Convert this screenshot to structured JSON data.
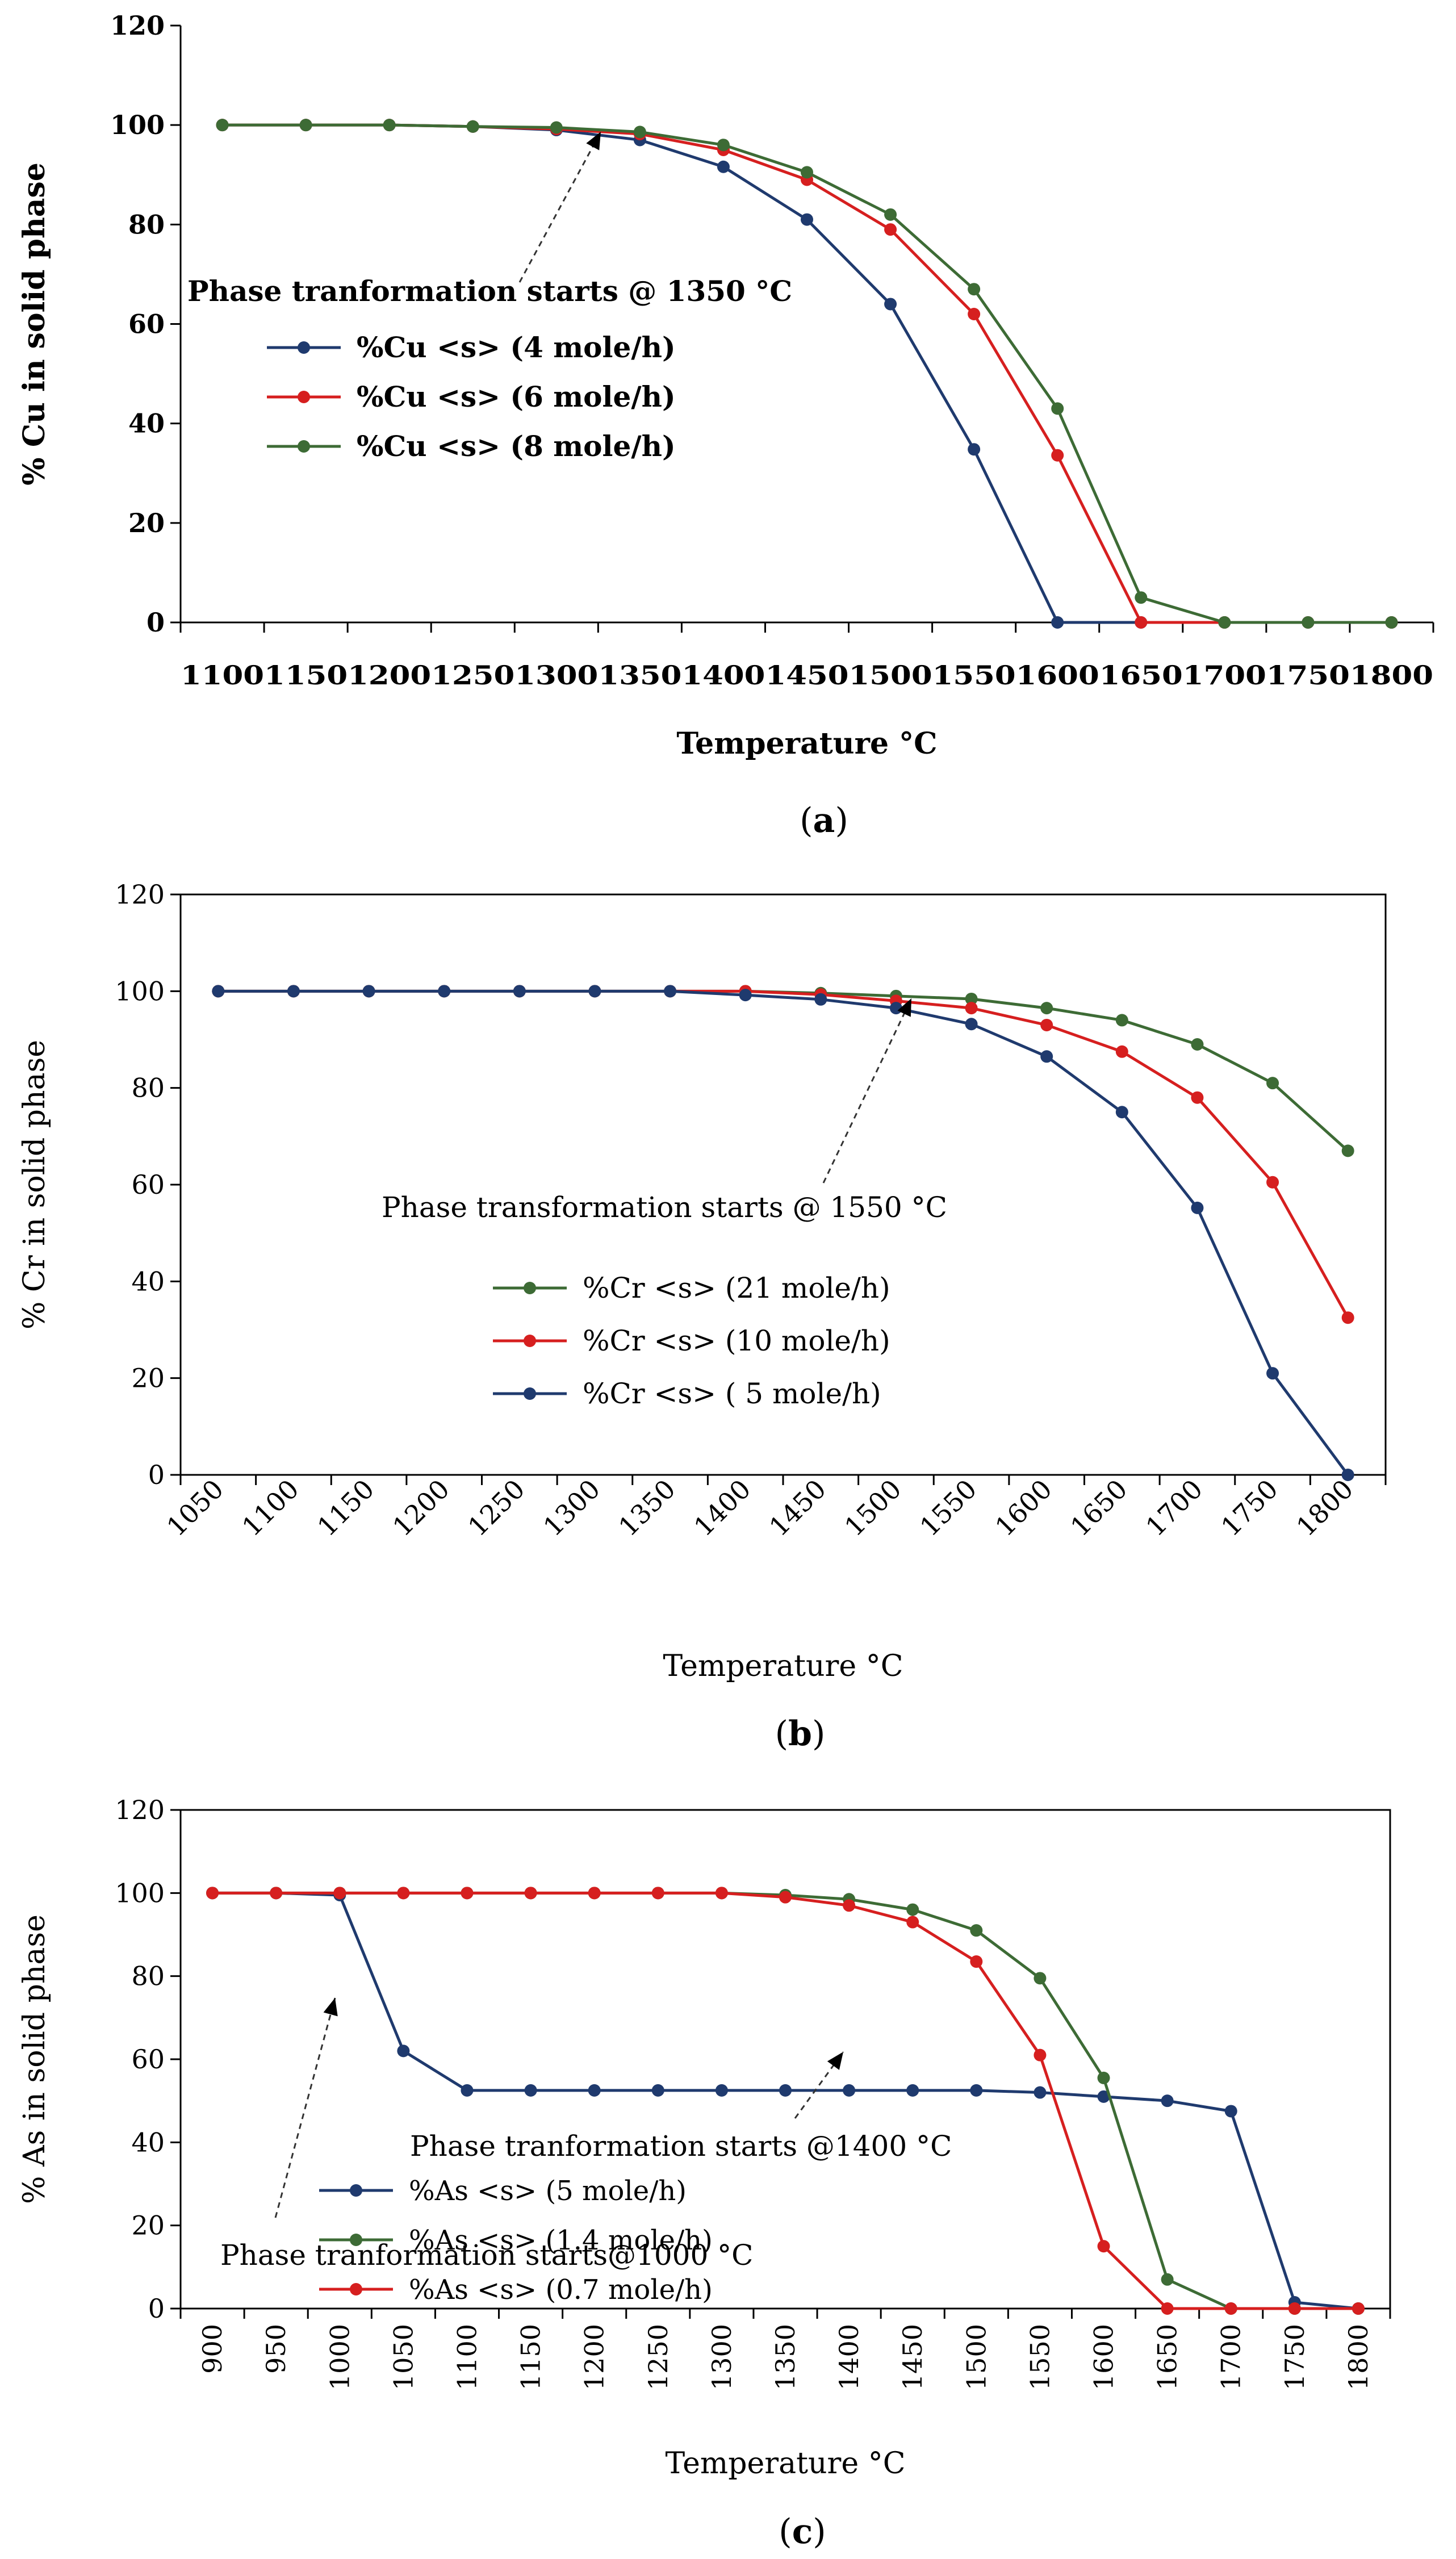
{
  "chart_data": [
    {
      "type": "line",
      "panel_label": "(a)",
      "panel_label_parts": [
        "(",
        "a",
        ")"
      ],
      "title": "",
      "xlabel": "Temperature °C",
      "ylabel": "% Cu in solid phase",
      "categories": [
        "1100",
        "1150",
        "1200",
        "1250",
        "1300",
        "1350",
        "1400",
        "1450",
        "1500",
        "1550",
        "1600",
        "1650",
        "1700",
        "1750",
        "1800"
      ],
      "ylim": [
        0,
        120
      ],
      "yticks": [
        "0",
        "20",
        "40",
        "60",
        "80",
        "100",
        "120"
      ],
      "grid": false,
      "series": [
        {
          "name": "%Cu <s> (4 mole/h)",
          "color": "#1f3a6e",
          "values": [
            100,
            100,
            100,
            99.7,
            99,
            97,
            91.6,
            81,
            64,
            34.8,
            0,
            0,
            0,
            0,
            0
          ]
        },
        {
          "name": "%Cu <s> (6 mole/h)",
          "color": "#d61f1f",
          "values": [
            100,
            100,
            100,
            99.7,
            99.2,
            98.2,
            95,
            89,
            79,
            62,
            33.6,
            0,
            0,
            0,
            0
          ]
        },
        {
          "name": "%Cu <s> (8 mole/h)",
          "color": "#3d6b35",
          "values": [
            100,
            100,
            100,
            99.7,
            99.5,
            98.6,
            96,
            90.5,
            82,
            67,
            43,
            5,
            0,
            0,
            0
          ]
        }
      ],
      "annotations": [
        {
          "text": "Phase tranformation starts @ 1350 °C",
          "target_category": "1300",
          "target_value": 99
        }
      ]
    },
    {
      "type": "line",
      "panel_label": "(b)",
      "panel_label_parts": [
        "(",
        "b",
        ")"
      ],
      "title": "",
      "xlabel": "Temperature °C",
      "ylabel": "% Cr in solid phase",
      "categories": [
        "1050",
        "1100",
        "1150",
        "1200",
        "1250",
        "1300",
        "1350",
        "1400",
        "1450",
        "1500",
        "1550",
        "1600",
        "1650",
        "1700",
        "1750",
        "1800"
      ],
      "ylim": [
        0,
        120
      ],
      "yticks": [
        "0",
        "20",
        "40",
        "60",
        "80",
        "100",
        "120"
      ],
      "grid": false,
      "series": [
        {
          "name": "%Cr <s>  (21 mole/h)",
          "color": "#3d6b35",
          "values": [
            100,
            100,
            100,
            100,
            100,
            100,
            100,
            100,
            99.6,
            99,
            98.4,
            96.5,
            94,
            89,
            81,
            67
          ]
        },
        {
          "name": "%Cr <s>  (10 mole/h)",
          "color": "#d61f1f",
          "values": [
            100,
            100,
            100,
            100,
            100,
            100,
            100,
            100,
            99.3,
            98,
            96.5,
            93,
            87.5,
            78,
            60.5,
            32.5
          ]
        },
        {
          "name": "%Cr <s>  ( 5  mole/h)",
          "color": "#1f3a6e",
          "values": [
            100,
            100,
            100,
            100,
            100,
            100,
            100,
            99.2,
            98.3,
            96.5,
            93.2,
            86.5,
            75,
            55.2,
            21,
            0
          ]
        }
      ],
      "annotations": [
        {
          "text": "Phase transformation starts @ 1550 °C",
          "target_category": "1500",
          "target_value": 97
        }
      ]
    },
    {
      "type": "line",
      "panel_label": "(c)",
      "panel_label_parts": [
        "(",
        "c",
        ")"
      ],
      "title": "",
      "xlabel": "Temperature °C",
      "ylabel": "% As in solid phase",
      "categories": [
        "900",
        "950",
        "1000",
        "1050",
        "1100",
        "1150",
        "1200",
        "1250",
        "1300",
        "1350",
        "1400",
        "1450",
        "1500",
        "1550",
        "1600",
        "1650",
        "1700",
        "1750",
        "1800"
      ],
      "ylim": [
        0,
        120
      ],
      "yticks": [
        "0",
        "20",
        "40",
        "60",
        "80",
        "100",
        "120"
      ],
      "grid": false,
      "series": [
        {
          "name": "%As <s> (5 mole/h)",
          "color": "#1f3a6e",
          "values": [
            100,
            100,
            99.5,
            62,
            52.5,
            52.5,
            52.5,
            52.5,
            52.5,
            52.5,
            52.5,
            52.5,
            52.5,
            52,
            51,
            50,
            47.5,
            1.5,
            0
          ]
        },
        {
          "name": "%As <s> (1.4 mole/h)",
          "color": "#3d6b35",
          "values": [
            100,
            100,
            100,
            100,
            100,
            100,
            100,
            100,
            100,
            99.5,
            98.5,
            96,
            91,
            79.5,
            55.5,
            7,
            0,
            0,
            0
          ]
        },
        {
          "name": "%As <s> (0.7 mole/h)",
          "color": "#d61f1f",
          "values": [
            100,
            100,
            100,
            100,
            100,
            100,
            100,
            100,
            100,
            99,
            97,
            93,
            83.5,
            61,
            15,
            0,
            0,
            0,
            0
          ]
        }
      ],
      "annotations": [
        {
          "text": "Phase tranformation starts @1400 °C",
          "target_category": "1400",
          "target_value": 97
        },
        {
          "text": "Phase tranformation  starts@1000 °C",
          "target_category": "1000",
          "target_value": 99
        }
      ]
    }
  ]
}
